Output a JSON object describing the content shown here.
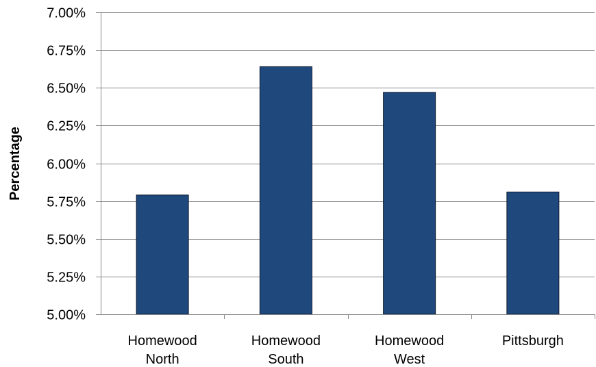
{
  "chart_data": {
    "type": "bar",
    "categories": [
      [
        "Homewood",
        "North"
      ],
      [
        "Homewood",
        "South"
      ],
      [
        "Homewood",
        "West"
      ],
      [
        "Pittsburgh"
      ]
    ],
    "values": [
      5.79,
      6.64,
      6.47,
      5.81
    ],
    "ylabel": "Percentage",
    "xlabel": "",
    "title": "",
    "ylim": [
      5.0,
      7.0
    ],
    "yticks": [
      5.0,
      5.25,
      5.5,
      5.75,
      6.0,
      6.25,
      6.5,
      6.75,
      7.0
    ],
    "ytick_labels": [
      "5.00%",
      "5.25%",
      "5.50%",
      "5.75%",
      "6.00%",
      "6.25%",
      "6.50%",
      "6.75%",
      "7.00%"
    ],
    "grid": true,
    "legend": "none",
    "colors": {
      "bar_fill": "#1f497d",
      "bar_stroke": "#0b1a2e",
      "grid": "#868686",
      "axis": "#868686"
    }
  }
}
